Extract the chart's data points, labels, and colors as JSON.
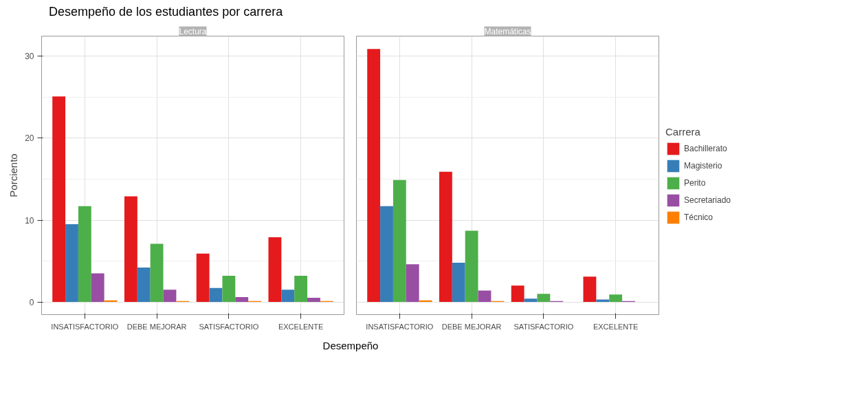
{
  "chart_data": [
    {
      "type": "bar",
      "title": "Desempeño de los estudiantes por carrera",
      "subtitle": "Lectura",
      "xlabel": "Desempeño",
      "ylabel": "Porciento",
      "categories": [
        "INSATISFACTORIO",
        "DEBE MEJORAR",
        "SATISFACTORIO",
        "EXCELENTE"
      ],
      "series": [
        {
          "color": "#e41a1c",
          "values": [
            25.1,
            12.9,
            5.9,
            7.9
          ]
        },
        {
          "color": "#377eb8",
          "values": [
            9.5,
            4.2,
            1.7,
            1.5
          ]
        },
        {
          "color": "#4daf4a",
          "values": [
            11.7,
            7.1,
            3.2,
            3.2
          ]
        },
        {
          "color": "#984ea3",
          "values": [
            3.5,
            1.5,
            0.6,
            0.5
          ]
        },
        {
          "color": "#ff7f00",
          "values": [
            0.2,
            0.1,
            0.1,
            0.1
          ]
        }
      ],
      "ylim": [
        -1.55,
        32.47
      ],
      "yticks": [
        0,
        10,
        20,
        30
      ],
      "grid": true
    },
    {
      "type": "bar",
      "subtitle": "Matemáticas",
      "legend_title": "Carrera",
      "categories": [
        "INSATISFACTORIO",
        "DEBE MEJORAR",
        "SATISFACTORIO",
        "EXCELENTE"
      ],
      "series": [
        {
          "name": "Bachillerato",
          "color": "#e41a1c",
          "values": [
            30.9,
            15.9,
            2.0,
            3.1
          ]
        },
        {
          "name": "Magisterio",
          "color": "#377eb8",
          "values": [
            11.7,
            4.8,
            0.4,
            0.3
          ]
        },
        {
          "name": "Perito",
          "color": "#4daf4a",
          "values": [
            14.9,
            8.7,
            1.0,
            0.9
          ]
        },
        {
          "name": "Secretariado",
          "color": "#984ea3",
          "values": [
            4.6,
            1.4,
            0.1,
            0.1
          ]
        },
        {
          "name": "Técnico",
          "color": "#ff7f00",
          "values": [
            0.2,
            0.1,
            null,
            null
          ]
        }
      ],
      "ylim": [
        -1.55,
        32.47
      ],
      "yticks": [
        0,
        10,
        20,
        30
      ],
      "grid": true,
      "legend": "right",
      "tick_labels": "x"
    }
  ]
}
